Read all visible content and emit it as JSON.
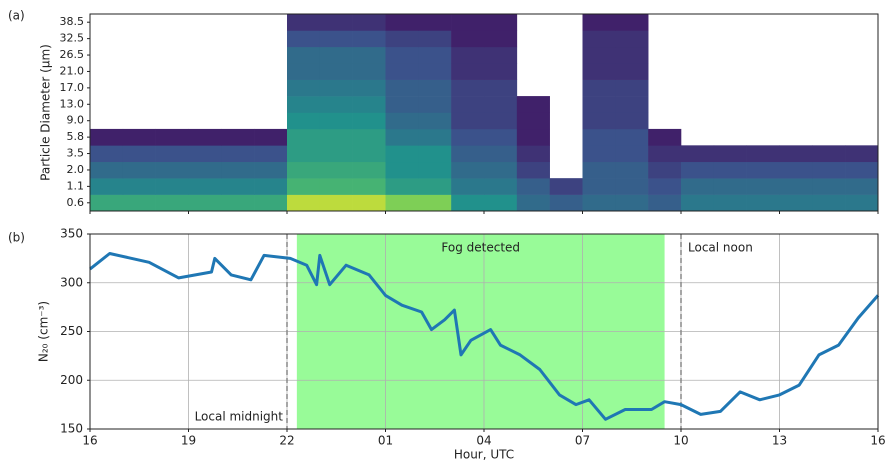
{
  "chart_data": [
    {
      "type": "heatmap",
      "panel_label": "(a)",
      "ylabel": "Particle Diameter (μm)",
      "categories": [
        "0.6",
        "1.1",
        "2.0",
        "3.5",
        "5.8",
        "9.0",
        "13.0",
        "17.0",
        "21.0",
        "26.5",
        "32.5",
        "38.5"
      ],
      "bins": [
        0,
        1,
        2,
        3,
        4,
        5,
        6,
        7,
        8,
        9,
        10,
        11,
        12,
        13,
        14,
        15,
        16,
        17,
        18,
        19,
        20,
        21,
        22,
        23,
        24
      ],
      "xlim": [
        0,
        24
      ],
      "xticks": [
        0,
        3,
        6,
        9,
        12,
        15,
        18,
        21,
        24
      ],
      "colormap": [
        "#440154",
        "#3b528b",
        "#21918c",
        "#5ec962",
        "#fde725"
      ],
      "z": [
        [
          0.6,
          0.6,
          0.6,
          0.6,
          0.6,
          0.6,
          0.9,
          0.9,
          0.9,
          0.8,
          0.8,
          0.5,
          0.5,
          0.35,
          0.3,
          0.35,
          0.35,
          0.3,
          0.4,
          0.4,
          0.4,
          0.4,
          0.4,
          0.4
        ],
        [
          0.45,
          0.45,
          0.45,
          0.45,
          0.45,
          0.45,
          0.65,
          0.65,
          0.65,
          0.55,
          0.55,
          0.4,
          0.4,
          0.3,
          0.2,
          0.3,
          0.3,
          0.25,
          0.35,
          0.35,
          0.35,
          0.35,
          0.35,
          0.35
        ],
        [
          0.35,
          0.35,
          0.35,
          0.35,
          0.35,
          0.35,
          0.6,
          0.6,
          0.6,
          0.5,
          0.5,
          0.35,
          0.35,
          0.2,
          null,
          0.3,
          0.3,
          0.2,
          0.25,
          0.25,
          0.25,
          0.25,
          0.25,
          0.25
        ],
        [
          0.25,
          0.25,
          0.25,
          0.25,
          0.25,
          0.25,
          0.55,
          0.55,
          0.55,
          0.5,
          0.5,
          0.3,
          0.3,
          0.15,
          null,
          0.25,
          0.25,
          0.15,
          0.15,
          0.15,
          0.15,
          0.15,
          0.15,
          0.15
        ],
        [
          0.1,
          0.1,
          0.1,
          0.1,
          0.1,
          0.1,
          0.55,
          0.55,
          0.55,
          0.4,
          0.4,
          0.25,
          0.25,
          0.1,
          null,
          0.25,
          0.25,
          0.1,
          null,
          null,
          null,
          null,
          null,
          null
        ],
        [
          null,
          null,
          null,
          null,
          null,
          null,
          0.5,
          0.5,
          0.5,
          0.35,
          0.35,
          0.2,
          0.2,
          0.1,
          null,
          0.2,
          0.2,
          null,
          null,
          null,
          null,
          null,
          null,
          null
        ],
        [
          null,
          null,
          null,
          null,
          null,
          null,
          0.45,
          0.45,
          0.45,
          0.3,
          0.3,
          0.2,
          0.2,
          0.1,
          null,
          0.2,
          0.2,
          null,
          null,
          null,
          null,
          null,
          null,
          null
        ],
        [
          null,
          null,
          null,
          null,
          null,
          null,
          0.4,
          0.4,
          0.4,
          0.3,
          0.3,
          0.2,
          0.2,
          null,
          null,
          0.2,
          0.2,
          null,
          null,
          null,
          null,
          null,
          null,
          null
        ],
        [
          null,
          null,
          null,
          null,
          null,
          null,
          0.35,
          0.35,
          0.35,
          0.25,
          0.25,
          0.15,
          0.15,
          null,
          null,
          0.15,
          0.15,
          null,
          null,
          null,
          null,
          null,
          null,
          null
        ],
        [
          null,
          null,
          null,
          null,
          null,
          null,
          0.35,
          0.35,
          0.35,
          0.25,
          0.25,
          0.15,
          0.15,
          null,
          null,
          0.15,
          0.15,
          null,
          null,
          null,
          null,
          null,
          null,
          null
        ],
        [
          null,
          null,
          null,
          null,
          null,
          null,
          0.25,
          0.25,
          0.25,
          0.2,
          0.2,
          0.1,
          0.1,
          null,
          null,
          0.15,
          0.15,
          null,
          null,
          null,
          null,
          null,
          null,
          null
        ],
        [
          null,
          null,
          null,
          null,
          null,
          null,
          0.15,
          0.15,
          0.15,
          0.1,
          0.1,
          0.1,
          0.1,
          null,
          null,
          0.1,
          0.1,
          null,
          null,
          null,
          null,
          null,
          null,
          null
        ]
      ]
    },
    {
      "type": "line",
      "panel_label": "(b)",
      "ylabel": "N₂₀ (cm⁻³)",
      "xlabel": "Hour, UTC",
      "xlim": [
        0,
        24
      ],
      "ylim": [
        150,
        350
      ],
      "xticks": [
        {
          "value": 0,
          "label": "16"
        },
        {
          "value": 3,
          "label": "19"
        },
        {
          "value": 6,
          "label": "22"
        },
        {
          "value": 9,
          "label": "01"
        },
        {
          "value": 12,
          "label": "04"
        },
        {
          "value": 15,
          "label": "07"
        },
        {
          "value": 18,
          "label": "10"
        },
        {
          "value": 21,
          "label": "13"
        },
        {
          "value": 24,
          "label": "16"
        }
      ],
      "yticks": [
        150,
        200,
        250,
        300,
        350
      ],
      "grid": true,
      "shaded_region": {
        "xlim": [
          6.3,
          17.5
        ],
        "color": "#98fb98",
        "label": "Fog detected"
      },
      "vlines": [
        {
          "x": 6,
          "label": "Local midnight"
        },
        {
          "x": 18,
          "label": "Local noon"
        }
      ],
      "series": [
        {
          "color": "#1f77b4",
          "x": [
            0,
            0.6,
            1.8,
            2.7,
            3.7,
            3.8,
            4.3,
            4.9,
            5.3,
            6.1,
            6.6,
            6.9,
            7,
            7.3,
            7.8,
            8.5,
            9,
            9.5,
            10.1,
            10.4,
            10.8,
            11.1,
            11.3,
            11.6,
            12.2,
            12.5,
            13.1,
            13.7,
            14.3,
            14.8,
            15.2,
            15.7,
            16.3,
            17.1,
            17.5,
            18,
            18.6,
            19.2,
            19.8,
            20.4,
            21,
            21.6,
            22.2,
            22.8,
            23.4,
            24
          ],
          "values": [
            314,
            330,
            321,
            305,
            311,
            325,
            308,
            303,
            328,
            325,
            318,
            298,
            328,
            298,
            318,
            308,
            287,
            277,
            270,
            252,
            262,
            272,
            226,
            241,
            252,
            236,
            226,
            211,
            185,
            175,
            180,
            160,
            170,
            170,
            178,
            175,
            165,
            168,
            188,
            180,
            185,
            195,
            226,
            236,
            264,
            287
          ]
        }
      ]
    }
  ]
}
